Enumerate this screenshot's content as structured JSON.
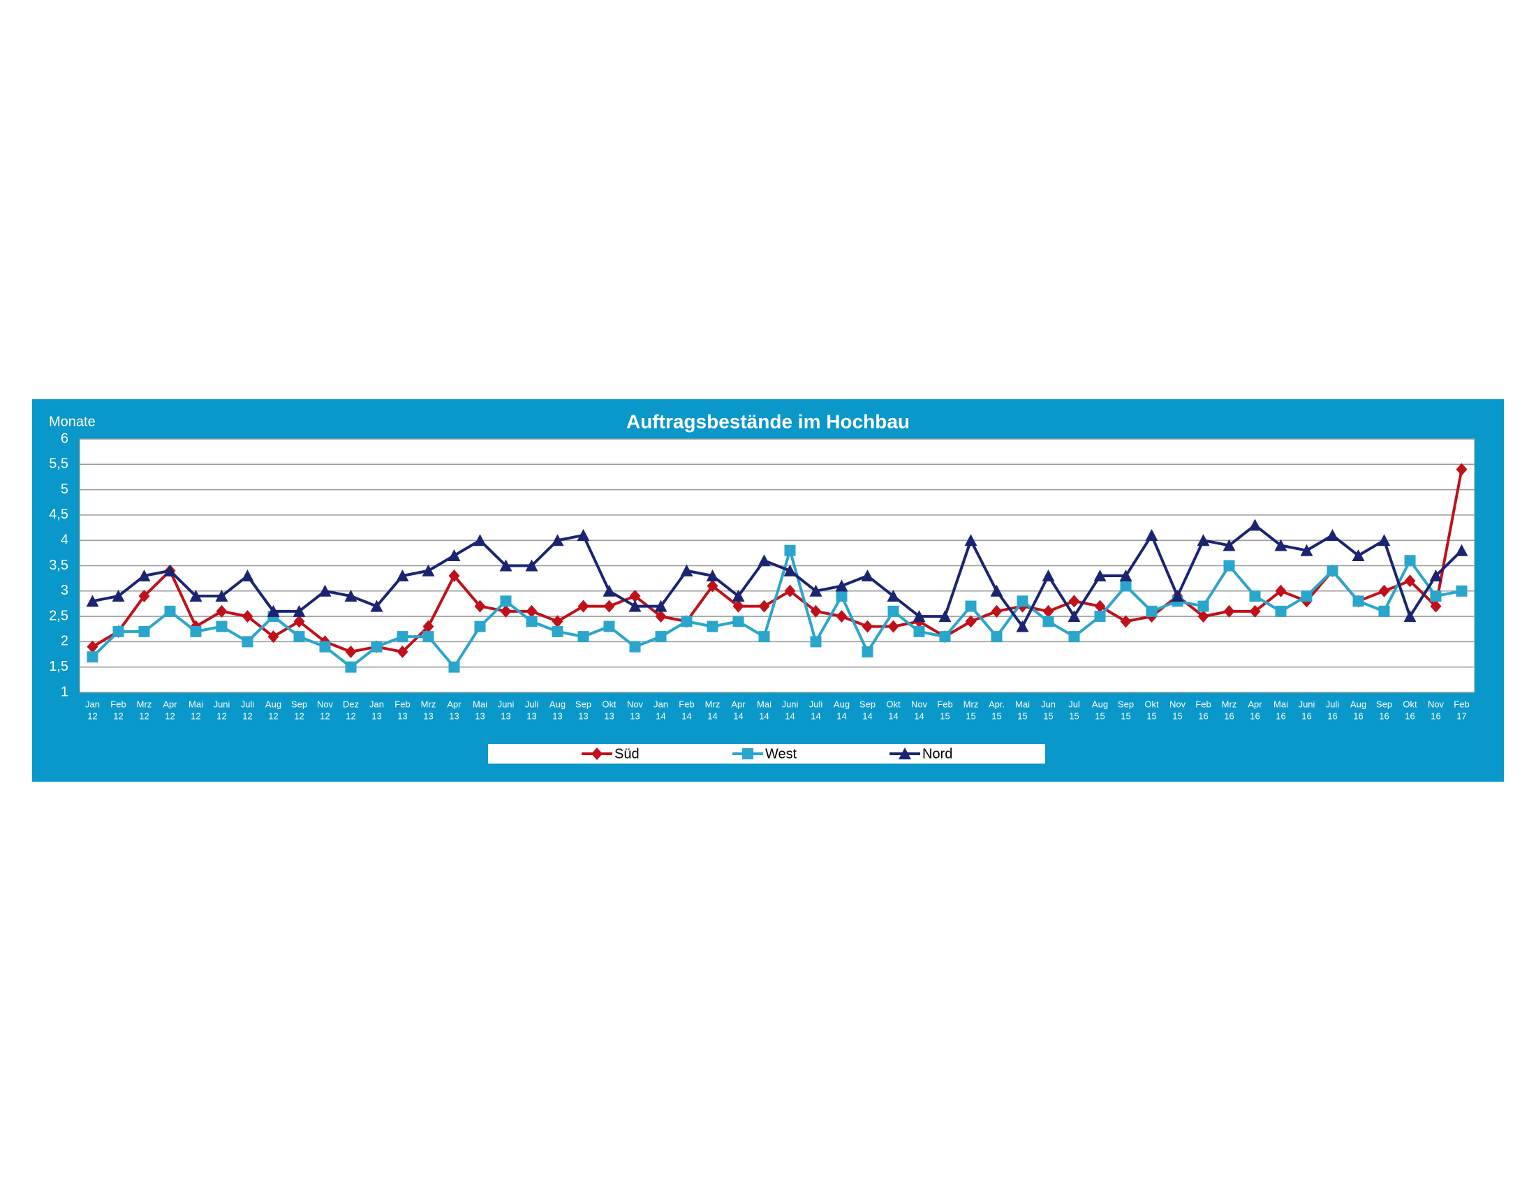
{
  "chart_data": {
    "type": "line",
    "title": "Auftragsbestände im Hochbau",
    "y_label": "Monate",
    "categories": [
      [
        "Jan",
        "12"
      ],
      [
        "Feb",
        "12"
      ],
      [
        "Mrz",
        "12"
      ],
      [
        "Apr",
        "12"
      ],
      [
        "Mai",
        "12"
      ],
      [
        "Juni",
        "12"
      ],
      [
        "Juli",
        "12"
      ],
      [
        "Aug",
        "12"
      ],
      [
        "Sep",
        "12"
      ],
      [
        "Nov",
        "12"
      ],
      [
        "Dez",
        "12"
      ],
      [
        "Jan",
        "13"
      ],
      [
        "Feb",
        "13"
      ],
      [
        "Mrz",
        "13"
      ],
      [
        "Apr",
        "13"
      ],
      [
        "Mai",
        "13"
      ],
      [
        "Juni",
        "13"
      ],
      [
        "Juli",
        "13"
      ],
      [
        "Aug",
        "13"
      ],
      [
        "Sep",
        "13"
      ],
      [
        "Okt",
        "13"
      ],
      [
        "Nov",
        "13"
      ],
      [
        "Jan",
        "14"
      ],
      [
        "Feb",
        "14"
      ],
      [
        "Mrz",
        "14"
      ],
      [
        "Apr",
        "14"
      ],
      [
        "Mai",
        "14"
      ],
      [
        "Juni",
        "14"
      ],
      [
        "Juli",
        "14"
      ],
      [
        "Aug",
        "14"
      ],
      [
        "Sep",
        "14"
      ],
      [
        "Okt",
        "14"
      ],
      [
        "Nov",
        "14"
      ],
      [
        "Feb",
        "15"
      ],
      [
        "Mrz",
        "15"
      ],
      [
        "Apr.",
        "15"
      ],
      [
        "Mai",
        "15"
      ],
      [
        "Jun",
        "15"
      ],
      [
        "Jul",
        "15"
      ],
      [
        "Aug",
        "15"
      ],
      [
        "Sep",
        "15"
      ],
      [
        "Okt",
        "15"
      ],
      [
        "Nov",
        "15"
      ],
      [
        "Feb",
        "16"
      ],
      [
        "Mrz",
        "16"
      ],
      [
        "Apr",
        "16"
      ],
      [
        "Mai",
        "16"
      ],
      [
        "Juni",
        "16"
      ],
      [
        "Juli",
        "16"
      ],
      [
        "Aug",
        "16"
      ],
      [
        "Sep",
        "16"
      ],
      [
        "Okt",
        "16"
      ],
      [
        "Nov",
        "16"
      ],
      [
        "Feb",
        "17"
      ]
    ],
    "series": [
      {
        "name": "Süd",
        "color": "#c0101a",
        "marker": "diamond",
        "values": [
          1.9,
          2.2,
          2.9,
          3.4,
          2.3,
          2.6,
          2.5,
          2.1,
          2.4,
          2.0,
          1.8,
          1.9,
          1.8,
          2.3,
          3.3,
          2.7,
          2.6,
          2.6,
          2.4,
          2.7,
          2.7,
          2.9,
          2.5,
          2.4,
          3.1,
          2.7,
          2.7,
          3.0,
          2.6,
          2.5,
          2.3,
          2.3,
          2.4,
          2.1,
          2.4,
          2.6,
          2.7,
          2.6,
          2.8,
          2.7,
          2.4,
          2.5,
          2.9,
          2.5,
          2.6,
          2.6,
          3.0,
          2.8,
          3.4,
          2.8,
          3.0,
          3.2,
          2.7,
          5.4
        ]
      },
      {
        "name": "West",
        "color": "#2aa5cc",
        "marker": "square",
        "values": [
          1.7,
          2.2,
          2.2,
          2.6,
          2.2,
          2.3,
          2.0,
          2.5,
          2.1,
          1.9,
          1.5,
          1.9,
          2.1,
          2.1,
          1.5,
          2.3,
          2.8,
          2.4,
          2.2,
          2.1,
          2.3,
          1.9,
          2.1,
          2.4,
          2.3,
          2.4,
          2.1,
          3.8,
          2.0,
          2.9,
          1.8,
          2.6,
          2.2,
          2.1,
          2.7,
          2.1,
          2.8,
          2.4,
          2.1,
          2.5,
          3.1,
          2.6,
          2.8,
          2.7,
          3.5,
          2.9,
          2.6,
          2.9,
          3.4,
          2.8,
          2.6,
          3.6,
          2.9,
          3.0
        ]
      },
      {
        "name": "Nord",
        "color": "#1a2470",
        "marker": "triangle",
        "values": [
          2.8,
          2.9,
          3.3,
          3.4,
          2.9,
          2.9,
          3.3,
          2.6,
          2.6,
          3.0,
          2.9,
          2.7,
          3.3,
          3.4,
          3.7,
          4.0,
          3.5,
          3.5,
          4.0,
          4.1,
          3.0,
          2.7,
          2.7,
          3.4,
          3.3,
          2.9,
          3.6,
          3.4,
          3.0,
          3.1,
          3.3,
          2.9,
          2.5,
          2.5,
          4.0,
          3.0,
          2.3,
          3.3,
          2.5,
          3.3,
          3.3,
          4.1,
          2.9,
          4.0,
          3.9,
          4.3,
          3.9,
          3.8,
          4.1,
          3.7,
          4.0,
          2.5,
          3.3,
          3.8
        ]
      }
    ],
    "ylim": [
      1,
      6
    ],
    "yticks": [
      1,
      {
        "value": 1.5,
        "label": "1,5"
      },
      2,
      {
        "value": 2.5,
        "label": "2,5"
      },
      3,
      {
        "value": 3.5,
        "label": "3,5"
      },
      4,
      {
        "value": 4.5,
        "label": "4,5"
      },
      5,
      {
        "value": 5.5,
        "label": "5,5"
      },
      6
    ],
    "grid": true,
    "legend": "bottom"
  }
}
